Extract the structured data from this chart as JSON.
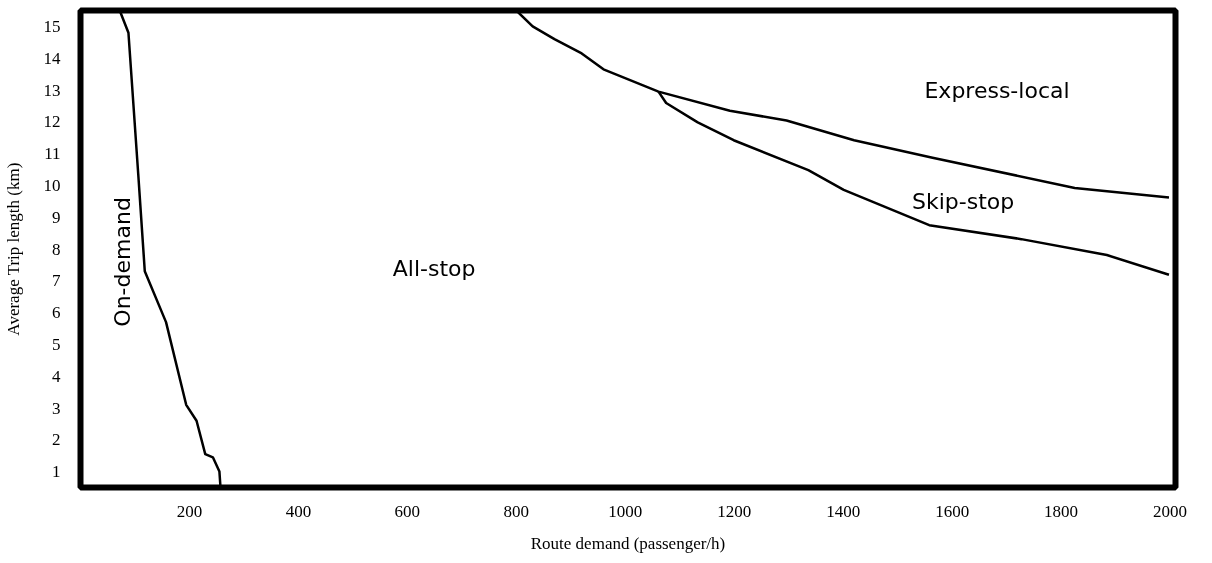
{
  "chart_data": {
    "type": "line",
    "xlabel": "Route demand (passenger/h)",
    "ylabel": "Average Trip length (km)",
    "xlim": [
      0,
      2010
    ],
    "ylim": [
      0.5,
      15.5
    ],
    "xticks": [
      200,
      400,
      600,
      800,
      1000,
      1200,
      1400,
      1600,
      1800,
      2000
    ],
    "yticks": [
      1,
      2,
      3,
      4,
      5,
      6,
      7,
      8,
      9,
      10,
      11,
      12,
      13,
      14,
      15
    ],
    "grid": false,
    "marker": "none",
    "line_style": "solid",
    "series": [
      {
        "color": "#000000",
        "x": [
          72,
          88,
          106,
          118,
          157,
          194,
          213,
          229,
          243,
          255,
          257
        ],
        "values": [
          15.5,
          14.8,
          10.35,
          7.3,
          5.7,
          3.1,
          2.6,
          1.55,
          1.45,
          1.0,
          0.5
        ]
      },
      {
        "color": "#000000",
        "x": [
          800,
          830,
          870,
          920,
          960,
          1061,
          1192,
          1296,
          1420,
          1564,
          1825,
          1998
        ],
        "values": [
          15.5,
          15.0,
          14.6,
          14.15,
          13.65,
          12.95,
          12.35,
          12.04,
          11.42,
          10.87,
          9.92,
          9.62
        ]
      },
      {
        "color": "#000000",
        "x": [
          1061,
          1075,
          1133,
          1199,
          1336,
          1401,
          1558,
          1727,
          1884,
          1998
        ],
        "values": [
          12.95,
          12.59,
          11.98,
          11.42,
          10.48,
          9.86,
          8.75,
          8.31,
          7.81,
          7.19
        ]
      }
    ],
    "annotations": [
      "On-demand",
      "All-stop",
      "Express-local",
      "Skip-stop"
    ]
  }
}
